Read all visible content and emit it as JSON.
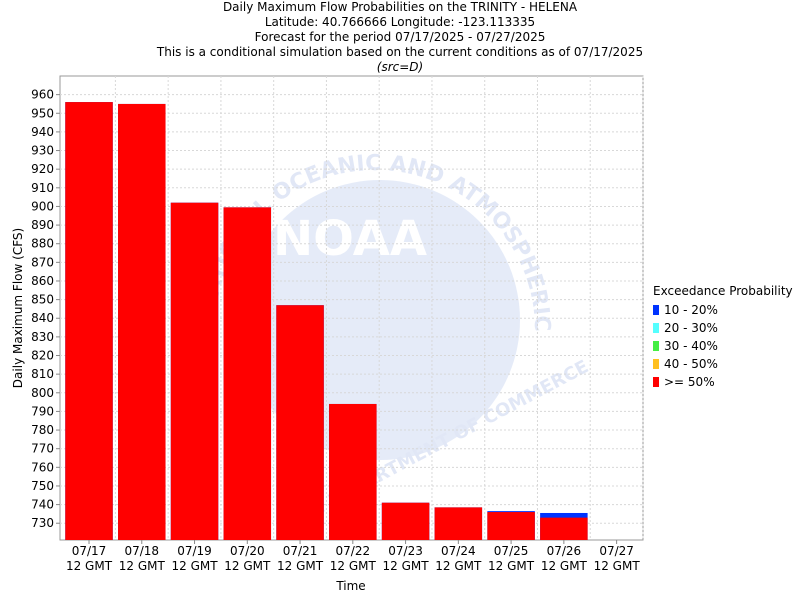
{
  "header": {
    "line1": "Daily Maximum Flow Probabilities on the TRINITY - HELENA",
    "line2": "Latitude: 40.766666 Longitude: -123.113335",
    "line3": "Forecast for the period 07/17/2025 - 07/27/2025",
    "line4": "This is a conditional simulation based on the current conditions as of 07/17/2025",
    "line5": "(src=D)"
  },
  "watermark": {
    "arc_text": "NATIONAL OCEANIC AND ATMOSPHERIC ADMINISTRATION",
    "center_text": "NOAA",
    "bottom_text": "U.S. DEPARTMENT OF COMMERCE"
  },
  "legend": {
    "title": "Exceedance Probability",
    "items": [
      {
        "label": "10 - 20%",
        "color": "#0033ff"
      },
      {
        "label": "20 - 30%",
        "color": "#55ffff"
      },
      {
        "label": "30 - 40%",
        "color": "#44ee44"
      },
      {
        "label": "40 - 50%",
        "color": "#ffc020"
      },
      {
        "label": ">= 50%",
        "color": "#ff0000"
      }
    ]
  },
  "chart_data": {
    "type": "bar",
    "ylabel": "Daily Maximum Flow (CFS)",
    "xlabel": "Time",
    "ylim": [
      721,
      970
    ],
    "yticks": [
      730,
      740,
      750,
      760,
      770,
      780,
      790,
      800,
      810,
      820,
      830,
      840,
      850,
      860,
      870,
      880,
      890,
      900,
      910,
      920,
      930,
      940,
      950,
      960
    ],
    "grid": true,
    "legend_position": "right",
    "categories": [
      "07/17",
      "07/18",
      "07/19",
      "07/20",
      "07/21",
      "07/22",
      "07/23",
      "07/24",
      "07/25",
      "07/26",
      "07/27"
    ],
    "category_sublabel": "12 GMT",
    "series": [
      {
        "name": "10 - 20%",
        "color": "#0033ff",
        "values": [
          956,
          955,
          902,
          899.5,
          847,
          794,
          741,
          738.5,
          736.5,
          735.5,
          null
        ]
      },
      {
        "name": ">= 50%",
        "color": "#ff0000",
        "values": [
          956,
          955,
          902,
          899.5,
          847,
          794,
          741,
          738.5,
          736,
          733,
          null
        ]
      }
    ]
  }
}
